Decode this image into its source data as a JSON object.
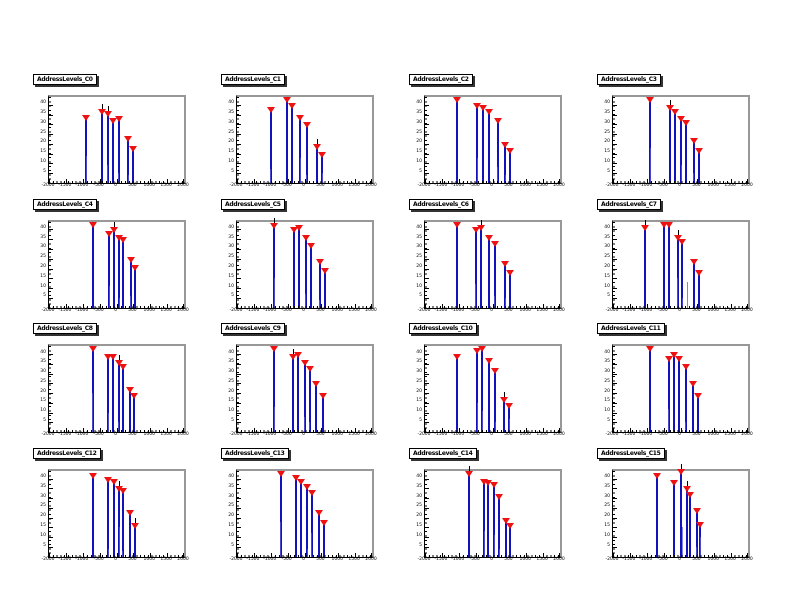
{
  "page": {
    "background": "#ffffff"
  },
  "colors": {
    "stem": "#1212bd",
    "minor_stem": "#5a5ad8",
    "marker": "#ee1111",
    "whisker": "#000000",
    "frame_shadow": "#989898",
    "axis": "#000000",
    "title_box_bg": "#ffffff",
    "title_box_border": "#000000"
  },
  "axes": {
    "xlim": [
      -2000,
      2000
    ],
    "ylim": [
      0,
      44
    ],
    "x_tick_labels": [
      "-2000",
      "-1500",
      "-1000",
      "-500",
      "0",
      "500",
      "1000",
      "1500",
      "2000"
    ],
    "y_tick_values": [
      40,
      35,
      30,
      25,
      20,
      15,
      10,
      5
    ],
    "grid": false,
    "legend": "none"
  },
  "chart_data": [
    {
      "type": "stem",
      "title": "AddressLevels_C0",
      "marker": "filled-triangle-down",
      "stems": [
        {
          "x": -900,
          "y": 33
        },
        {
          "x": -430,
          "y": 36
        },
        {
          "x": -260,
          "y": 35
        },
        {
          "x": -90,
          "y": 31
        },
        {
          "x": 70,
          "y": 32
        },
        {
          "x": 350,
          "y": 22
        },
        {
          "x": 500,
          "y": 17
        }
      ],
      "whiskers": [
        -430,
        -260
      ],
      "minor_stems": [
        {
          "x": -915,
          "y": 14
        },
        {
          "x": -275,
          "y": 9
        },
        {
          "x": 55,
          "y": 5
        },
        {
          "x": 335,
          "y": 4
        }
      ]
    },
    {
      "type": "stem",
      "title": "AddressLevels_C1",
      "marker": "filled-triangle-down",
      "stems": [
        {
          "x": -1000,
          "y": 37
        },
        {
          "x": -520,
          "y": 42
        },
        {
          "x": -360,
          "y": 39
        },
        {
          "x": -120,
          "y": 33
        },
        {
          "x": 60,
          "y": 29
        },
        {
          "x": 380,
          "y": 18
        },
        {
          "x": 520,
          "y": 14
        }
      ],
      "whiskers": [
        380
      ],
      "minor_stems": [
        {
          "x": -1015,
          "y": 7
        },
        {
          "x": -135,
          "y": 13
        },
        {
          "x": 45,
          "y": 4
        },
        {
          "x": 505,
          "y": 5
        }
      ]
    },
    {
      "type": "stem",
      "title": "AddressLevels_C2",
      "marker": "filled-triangle-down",
      "stems": [
        {
          "x": -1050,
          "y": 42
        },
        {
          "x": -450,
          "y": 39
        },
        {
          "x": -270,
          "y": 38
        },
        {
          "x": -90,
          "y": 36
        },
        {
          "x": 150,
          "y": 31
        },
        {
          "x": 380,
          "y": 19
        },
        {
          "x": 520,
          "y": 16
        }
      ],
      "whiskers": [],
      "minor_stems": [
        {
          "x": -465,
          "y": 13
        },
        {
          "x": 135,
          "y": 8
        },
        {
          "x": 365,
          "y": 4
        }
      ]
    },
    {
      "type": "stem",
      "title": "AddressLevels_C3",
      "marker": "filled-triangle-down",
      "stems": [
        {
          "x": -900,
          "y": 42
        },
        {
          "x": -300,
          "y": 38
        },
        {
          "x": -150,
          "y": 36
        },
        {
          "x": 0,
          "y": 32
        },
        {
          "x": 150,
          "y": 30
        },
        {
          "x": 400,
          "y": 21
        },
        {
          "x": 550,
          "y": 16
        }
      ],
      "whiskers": [
        -300
      ],
      "minor_stems": [
        {
          "x": -915,
          "y": 18
        },
        {
          "x": 15,
          "y": 9
        },
        {
          "x": 385,
          "y": 5
        }
      ]
    },
    {
      "type": "stem",
      "title": "AddressLevels_C4",
      "marker": "filled-triangle-down",
      "stems": [
        {
          "x": -700,
          "y": 42
        },
        {
          "x": -220,
          "y": 37
        },
        {
          "x": -80,
          "y": 39
        },
        {
          "x": 80,
          "y": 35
        },
        {
          "x": 200,
          "y": 34
        },
        {
          "x": 420,
          "y": 24
        },
        {
          "x": 560,
          "y": 20
        }
      ],
      "whiskers": [
        -80
      ],
      "minor_stems": [
        {
          "x": -235,
          "y": 11
        },
        {
          "x": 65,
          "y": 5
        },
        {
          "x": 405,
          "y": 6
        }
      ]
    },
    {
      "type": "stem",
      "title": "AddressLevels_C5",
      "marker": "filled-triangle-down",
      "stems": [
        {
          "x": -900,
          "y": 41
        },
        {
          "x": -320,
          "y": 39
        },
        {
          "x": -160,
          "y": 40
        },
        {
          "x": 40,
          "y": 35
        },
        {
          "x": 200,
          "y": 31
        },
        {
          "x": 450,
          "y": 23
        },
        {
          "x": 600,
          "y": 18
        }
      ],
      "whiskers": [
        -900
      ],
      "minor_stems": [
        {
          "x": -915,
          "y": 15
        },
        {
          "x": 25,
          "y": 7
        },
        {
          "x": 435,
          "y": 4
        }
      ]
    },
    {
      "type": "stem",
      "title": "AddressLevels_C6",
      "marker": "filled-triangle-down",
      "stems": [
        {
          "x": -1050,
          "y": 42
        },
        {
          "x": -500,
          "y": 39
        },
        {
          "x": -350,
          "y": 40
        },
        {
          "x": -100,
          "y": 35
        },
        {
          "x": 60,
          "y": 32
        },
        {
          "x": 380,
          "y": 22
        },
        {
          "x": 520,
          "y": 17
        }
      ],
      "whiskers": [
        -350
      ],
      "minor_stems": [
        {
          "x": -515,
          "y": 12
        },
        {
          "x": 45,
          "y": 6
        },
        {
          "x": 365,
          "y": 5
        }
      ]
    },
    {
      "type": "stem",
      "title": "AddressLevels_C7",
      "marker": "filled-triangle-down",
      "stems": [
        {
          "x": -1050,
          "y": 40
        },
        {
          "x": -500,
          "y": 42
        },
        {
          "x": -350,
          "y": 42
        },
        {
          "x": -80,
          "y": 35
        },
        {
          "x": 50,
          "y": 33
        },
        {
          "x": 400,
          "y": 23
        },
        {
          "x": 550,
          "y": 17
        }
      ],
      "whiskers": [
        -1050,
        -80
      ],
      "minor_stems": [
        {
          "x": -95,
          "y": 15
        },
        {
          "x": 180,
          "y": 13
        },
        {
          "x": 35,
          "y": 5
        }
      ]
    },
    {
      "type": "stem",
      "title": "AddressLevels_C8",
      "marker": "filled-triangle-down",
      "stems": [
        {
          "x": -700,
          "y": 42
        },
        {
          "x": -250,
          "y": 38
        },
        {
          "x": -100,
          "y": 38
        },
        {
          "x": 60,
          "y": 35
        },
        {
          "x": 180,
          "y": 33
        },
        {
          "x": 400,
          "y": 21
        },
        {
          "x": 520,
          "y": 18
        }
      ],
      "whiskers": [
        60
      ],
      "minor_stems": [
        {
          "x": -715,
          "y": 20
        },
        {
          "x": -265,
          "y": 10
        },
        {
          "x": 45,
          "y": 5
        }
      ]
    },
    {
      "type": "stem",
      "title": "AddressLevels_C9",
      "marker": "filled-triangle-down",
      "stems": [
        {
          "x": -900,
          "y": 42
        },
        {
          "x": -350,
          "y": 38
        },
        {
          "x": -200,
          "y": 39
        },
        {
          "x": 0,
          "y": 35
        },
        {
          "x": 150,
          "y": 32
        },
        {
          "x": 350,
          "y": 24
        },
        {
          "x": 550,
          "y": 18
        }
      ],
      "whiskers": [
        -350
      ],
      "minor_stems": [
        {
          "x": -915,
          "y": 13
        },
        {
          "x": -15,
          "y": 8
        },
        {
          "x": 135,
          "y": 5
        }
      ]
    },
    {
      "type": "stem",
      "title": "AddressLevels_C10",
      "marker": "filled-triangle-down",
      "stems": [
        {
          "x": -1050,
          "y": 38
        },
        {
          "x": -450,
          "y": 41
        },
        {
          "x": -300,
          "y": 42
        },
        {
          "x": -100,
          "y": 36
        },
        {
          "x": 80,
          "y": 31
        },
        {
          "x": 350,
          "y": 16
        },
        {
          "x": 500,
          "y": 13
        }
      ],
      "whiskers": [
        350
      ],
      "minor_stems": [
        {
          "x": -465,
          "y": 15
        },
        {
          "x": -315,
          "y": 11
        },
        {
          "x": 65,
          "y": 5
        },
        {
          "x": 485,
          "y": 7
        }
      ]
    },
    {
      "type": "stem",
      "title": "AddressLevels_C11",
      "marker": "filled-triangle-down",
      "stems": [
        {
          "x": -900,
          "y": 42
        },
        {
          "x": -350,
          "y": 37
        },
        {
          "x": -200,
          "y": 39
        },
        {
          "x": -50,
          "y": 37
        },
        {
          "x": 150,
          "y": 33
        },
        {
          "x": 380,
          "y": 24
        },
        {
          "x": 520,
          "y": 18
        }
      ],
      "whiskers": [],
      "minor_stems": [
        {
          "x": -365,
          "y": 12
        },
        {
          "x": 135,
          "y": 5
        }
      ]
    },
    {
      "type": "stem",
      "title": "AddressLevels_C12",
      "marker": "filled-triangle-down",
      "stems": [
        {
          "x": -700,
          "y": 41
        },
        {
          "x": -250,
          "y": 39
        },
        {
          "x": -80,
          "y": 38
        },
        {
          "x": 80,
          "y": 34
        },
        {
          "x": 180,
          "y": 33
        },
        {
          "x": 400,
          "y": 22
        },
        {
          "x": 550,
          "y": 15
        }
      ],
      "whiskers": [
        80,
        550
      ],
      "minor_stems": [
        {
          "x": -265,
          "y": 4
        },
        {
          "x": 65,
          "y": 15
        },
        {
          "x": 165,
          "y": 3
        }
      ]
    },
    {
      "type": "stem",
      "title": "AddressLevels_C13",
      "marker": "filled-triangle-down",
      "stems": [
        {
          "x": -700,
          "y": 42
        },
        {
          "x": -250,
          "y": 40
        },
        {
          "x": -100,
          "y": 38
        },
        {
          "x": 80,
          "y": 35
        },
        {
          "x": 220,
          "y": 32
        },
        {
          "x": 420,
          "y": 22
        },
        {
          "x": 580,
          "y": 17
        }
      ],
      "whiskers": [],
      "minor_stems": [
        {
          "x": -715,
          "y": 18
        },
        {
          "x": 65,
          "y": 4
        },
        {
          "x": 205,
          "y": 12
        }
      ]
    },
    {
      "type": "stem",
      "title": "AddressLevels_C14",
      "marker": "filled-triangle-down",
      "stems": [
        {
          "x": -700,
          "y": 42
        },
        {
          "x": -250,
          "y": 38
        },
        {
          "x": -120,
          "y": 37
        },
        {
          "x": 50,
          "y": 36
        },
        {
          "x": 200,
          "y": 30
        },
        {
          "x": 400,
          "y": 18
        },
        {
          "x": 520,
          "y": 15
        }
      ],
      "whiskers": [
        -700
      ],
      "minor_stems": [
        {
          "x": -265,
          "y": 13
        },
        {
          "x": 35,
          "y": 11
        },
        {
          "x": 185,
          "y": 4
        }
      ]
    },
    {
      "type": "stem",
      "title": "AddressLevels_C15",
      "marker": "filled-triangle-down",
      "stems": [
        {
          "x": -700,
          "y": 41
        },
        {
          "x": -200,
          "y": 37
        },
        {
          "x": 20,
          "y": 43
        },
        {
          "x": 180,
          "y": 34
        },
        {
          "x": 280,
          "y": 31
        },
        {
          "x": 480,
          "y": 23
        },
        {
          "x": 580,
          "y": 16
        }
      ],
      "whiskers": [
        20,
        180
      ],
      "minor_stems": [
        {
          "x": 35,
          "y": 15
        },
        {
          "x": 465,
          "y": 5
        },
        {
          "x": 565,
          "y": 10
        }
      ]
    }
  ]
}
